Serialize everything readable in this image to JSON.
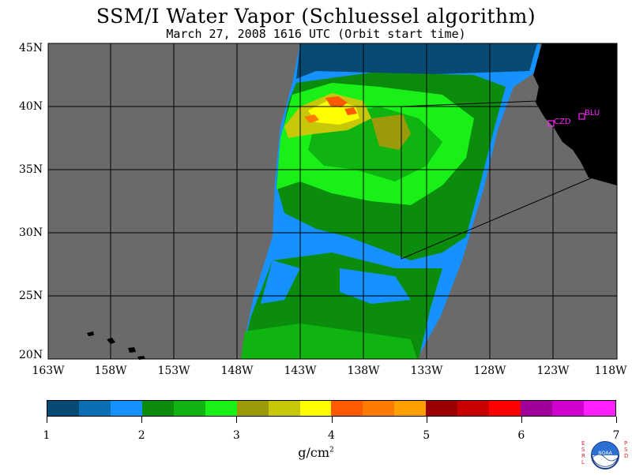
{
  "title": "SSM/I Water Vapor (Schluessel algorithm)",
  "subtitle": "March 27, 2008  1616 UTC  (Orbit start time)",
  "lat_labels": [
    "45N",
    "40N",
    "35N",
    "30N",
    "25N",
    "20N"
  ],
  "lon_labels": [
    "163W",
    "158W",
    "153W",
    "148W",
    "143W",
    "138W",
    "133W",
    "128W",
    "123W",
    "118W"
  ],
  "stations": [
    {
      "label": "CZD"
    },
    {
      "label": "BLU"
    }
  ],
  "colorbar": {
    "colors": [
      "#074b74",
      "#0a6fb5",
      "#1592ff",
      "#0c8c0c",
      "#10b410",
      "#18f018",
      "#9a9a0a",
      "#c8c80a",
      "#ffff00",
      "#ff5a00",
      "#ff7a00",
      "#ffa000",
      "#9a0000",
      "#c80000",
      "#ff0000",
      "#a0009a",
      "#d000d0",
      "#ff20ff"
    ],
    "ticks": [
      "1",
      "2",
      "3",
      "4",
      "5",
      "6",
      "7"
    ]
  },
  "units": {
    "base": "g/cm",
    "exp": "2"
  },
  "logo": {
    "text": "NOAA",
    "left_text": "ESRL",
    "right_text": "PSD"
  }
}
